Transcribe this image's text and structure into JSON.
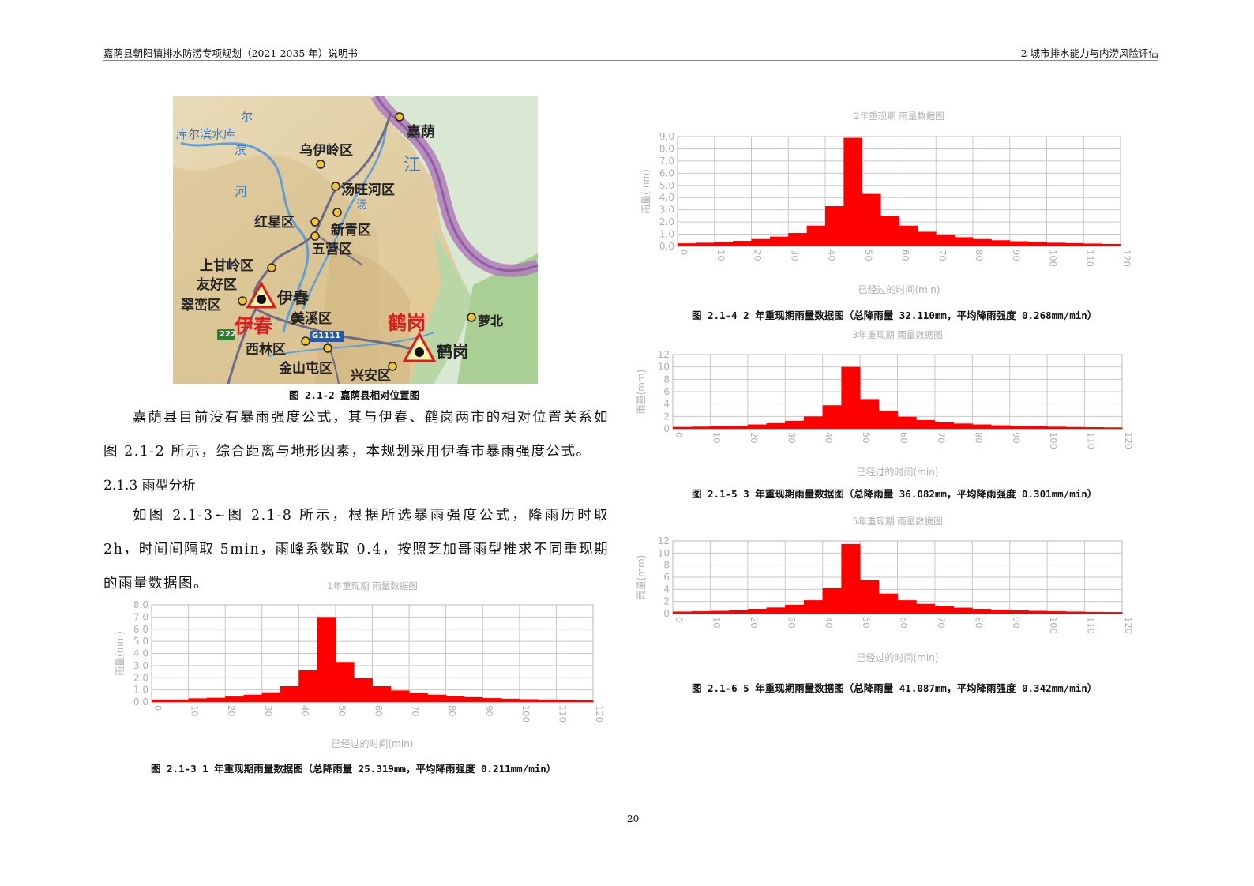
{
  "header": {
    "left": "嘉荫县朝阳镇排水防涝专项规划（2021-2035 年）说明书",
    "right": "2  城市排水能力与内涝风险评估"
  },
  "map": {
    "caption": "图 2.1-2  嘉荫县相对位置图",
    "labels": {
      "kuerbin": "库尔滨水库",
      "bin": "滨",
      "er": "尔",
      "he": "河",
      "jiayin": "嘉荫",
      "jiang": "江",
      "wuyiling": "乌伊岭区",
      "tangwanghe": "汤旺河区",
      "tang": "汤",
      "hongxing": "红星区",
      "xinqing": "新青区",
      "wuying": "五营区",
      "shangganling": "上甘岭区",
      "youhao": "友好区",
      "cuiluan": "翠峦区",
      "yichun_big": "伊春",
      "yichun_small": "伊春",
      "meixi": "美溪区",
      "xilin": "西林区",
      "jinshantun": "金山屯区",
      "xingan": "兴安区",
      "hegang_big": "鹤岗",
      "hegang_small": "鹤岗",
      "luobei": "萝北",
      "g1111": "G1111",
      "r222": "222"
    }
  },
  "body": {
    "para1": "嘉荫县目前没有暴雨强度公式，其与伊春、鹤岗两市的相对位置关系如图 2.1-2 所示，综合距离与地形因素，本规划采用伊春市暴雨强度公式。",
    "section": "2.1.3  雨型分析",
    "para2": "如图 2.1-3~图 2.1-8 所示，根据所选暴雨强度公式，降雨历时取 2h，时间间隔取 5min，雨峰系数取 0.4，按照芝加哥雨型推求不同重现期的雨量数据图。"
  },
  "captions": {
    "c1": "图 2.1-3   1 年重现期雨量数据图（总降雨量 25.319mm，平均降雨强度 0.211mm/min）",
    "c2": "图 2.1-4   2 年重现期雨量数据图（总降雨量 32.110mm，平均降雨强度 0.268mm/min）",
    "c3": "图 2.1-5   3 年重现期雨量数据图（总降雨量 36.082mm，平均降雨强度 0.301mm/min）",
    "c5": "图 2.1-6   5 年重现期雨量数据图（总降雨量 41.087mm，平均降雨强度 0.342mm/min）"
  },
  "page_number": "20",
  "colors": {
    "bar": "#ff0000",
    "grid": "#c8c8c8",
    "axis_text": "#b0b0b0"
  },
  "chart_data": [
    {
      "id": "y1",
      "type": "bar",
      "title": "1年重现期  雨量数据图",
      "xlabel": "已经过的时间(min)",
      "ylabel": "雨量(mm)",
      "xlim": [
        0,
        120
      ],
      "ylim": [
        0,
        8
      ],
      "ystep": 1,
      "ydecimals": 1,
      "xticks": [
        "0",
        "10",
        "20",
        "30",
        "40",
        "50",
        "60",
        "70",
        "80",
        "90",
        "100",
        "110",
        "120"
      ],
      "bin_width": 5,
      "values": [
        0.2,
        0.2,
        0.3,
        0.35,
        0.45,
        0.6,
        0.8,
        1.3,
        2.6,
        7.0,
        3.3,
        1.95,
        1.3,
        0.95,
        0.75,
        0.6,
        0.48,
        0.4,
        0.32,
        0.27,
        0.23,
        0.2,
        0.17,
        0.15
      ]
    },
    {
      "id": "y2",
      "type": "bar",
      "title": "2年重现期  雨量数据图",
      "xlabel": "已经过的时间(min)",
      "ylabel": "雨量(mm)",
      "xlim": [
        0,
        120
      ],
      "ylim": [
        0,
        9
      ],
      "ystep": 1,
      "ydecimals": 1,
      "xticks": [
        "0",
        "10",
        "20",
        "30",
        "40",
        "50",
        "60",
        "70",
        "80",
        "90",
        "100",
        "110",
        "120"
      ],
      "bin_width": 5,
      "values": [
        0.25,
        0.3,
        0.35,
        0.45,
        0.6,
        0.8,
        1.1,
        1.7,
        3.3,
        8.9,
        4.3,
        2.5,
        1.7,
        1.2,
        0.95,
        0.75,
        0.6,
        0.5,
        0.42,
        0.36,
        0.3,
        0.26,
        0.23,
        0.2
      ]
    },
    {
      "id": "y3",
      "type": "bar",
      "title": "3年重现期  雨量数据图",
      "xlabel": "已经过的时间(min)",
      "ylabel": "雨量(mm)",
      "xlim": [
        0,
        120
      ],
      "ylim": [
        0,
        12
      ],
      "ystep": 2,
      "ydecimals": 0,
      "xticks": [
        "0",
        "10",
        "20",
        "30",
        "40",
        "50",
        "60",
        "70",
        "80",
        "90",
        "100",
        "110",
        "120"
      ],
      "bin_width": 5,
      "values": [
        0.3,
        0.35,
        0.4,
        0.5,
        0.7,
        0.9,
        1.3,
        2.0,
        3.8,
        10.0,
        4.8,
        2.9,
        1.95,
        1.4,
        1.05,
        0.85,
        0.7,
        0.57,
        0.47,
        0.4,
        0.34,
        0.29,
        0.25,
        0.22
      ]
    },
    {
      "id": "y5",
      "type": "bar",
      "title": "5年重现期  雨量数据图",
      "xlabel": "已经过的时间(min)",
      "ylabel": "雨量(mm)",
      "xlim": [
        0,
        120
      ],
      "ylim": [
        0,
        12
      ],
      "ystep": 2,
      "ydecimals": 0,
      "xticks": [
        "0",
        "10",
        "20",
        "30",
        "40",
        "50",
        "60",
        "70",
        "80",
        "90",
        "100",
        "110",
        "120"
      ],
      "bin_width": 5,
      "values": [
        0.33,
        0.38,
        0.45,
        0.55,
        0.78,
        1.0,
        1.45,
        2.2,
        4.2,
        11.5,
        5.5,
        3.3,
        2.2,
        1.6,
        1.2,
        0.97,
        0.78,
        0.64,
        0.53,
        0.45,
        0.38,
        0.33,
        0.28,
        0.25
      ]
    }
  ]
}
